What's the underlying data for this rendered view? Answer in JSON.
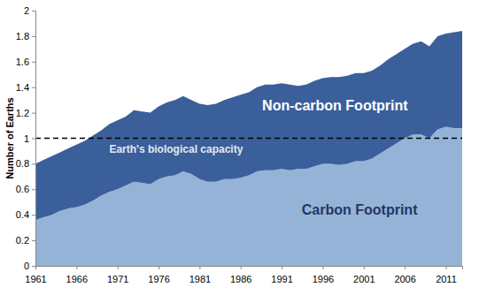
{
  "chart_data": {
    "type": "area",
    "stacked": true,
    "y_label": "Number of Earths",
    "x": [
      1961,
      1962,
      1963,
      1964,
      1965,
      1966,
      1967,
      1968,
      1969,
      1970,
      1971,
      1972,
      1973,
      1974,
      1975,
      1976,
      1977,
      1978,
      1979,
      1980,
      1981,
      1982,
      1983,
      1984,
      1985,
      1986,
      1987,
      1988,
      1989,
      1990,
      1991,
      1992,
      1993,
      1994,
      1995,
      1996,
      1997,
      1998,
      1999,
      2000,
      2001,
      2002,
      2003,
      2004,
      2005,
      2006,
      2007,
      2008,
      2009,
      2010,
      2011,
      2012,
      2013
    ],
    "series": [
      {
        "name": "Carbon Footprint",
        "color": "#95b3d7",
        "values": [
          0.36,
          0.38,
          0.4,
          0.43,
          0.45,
          0.46,
          0.48,
          0.51,
          0.55,
          0.58,
          0.6,
          0.63,
          0.66,
          0.65,
          0.64,
          0.68,
          0.7,
          0.71,
          0.74,
          0.72,
          0.68,
          0.66,
          0.66,
          0.68,
          0.68,
          0.69,
          0.71,
          0.74,
          0.75,
          0.75,
          0.76,
          0.75,
          0.76,
          0.76,
          0.78,
          0.8,
          0.8,
          0.79,
          0.8,
          0.82,
          0.82,
          0.84,
          0.88,
          0.92,
          0.96,
          1.0,
          1.03,
          1.03,
          1.0,
          1.07,
          1.09,
          1.08,
          1.08
        ]
      },
      {
        "name": "Non-carbon Footprint",
        "color": "#3a5f9a",
        "values": [
          0.44,
          0.45,
          0.46,
          0.46,
          0.47,
          0.49,
          0.5,
          0.51,
          0.51,
          0.53,
          0.54,
          0.54,
          0.56,
          0.56,
          0.56,
          0.57,
          0.58,
          0.59,
          0.59,
          0.58,
          0.59,
          0.6,
          0.61,
          0.62,
          0.64,
          0.65,
          0.65,
          0.66,
          0.67,
          0.67,
          0.67,
          0.67,
          0.65,
          0.66,
          0.67,
          0.67,
          0.68,
          0.69,
          0.69,
          0.69,
          0.69,
          0.69,
          0.69,
          0.7,
          0.7,
          0.7,
          0.71,
          0.73,
          0.72,
          0.73,
          0.73,
          0.75,
          0.76
        ]
      }
    ],
    "annotations": [
      {
        "text": "Earth's biological capacity",
        "y": 1,
        "line_style": "dashed"
      }
    ],
    "xlim": [
      1961,
      2013
    ],
    "xticks": [
      1961,
      1966,
      1971,
      1976,
      1981,
      1986,
      1991,
      1996,
      2001,
      2006,
      2011
    ],
    "ylim": [
      0,
      2
    ],
    "yticks": [
      0,
      0.2,
      0.4,
      0.6,
      0.8,
      1,
      1.2,
      1.4,
      1.6,
      1.8,
      2
    ],
    "grid": false
  }
}
